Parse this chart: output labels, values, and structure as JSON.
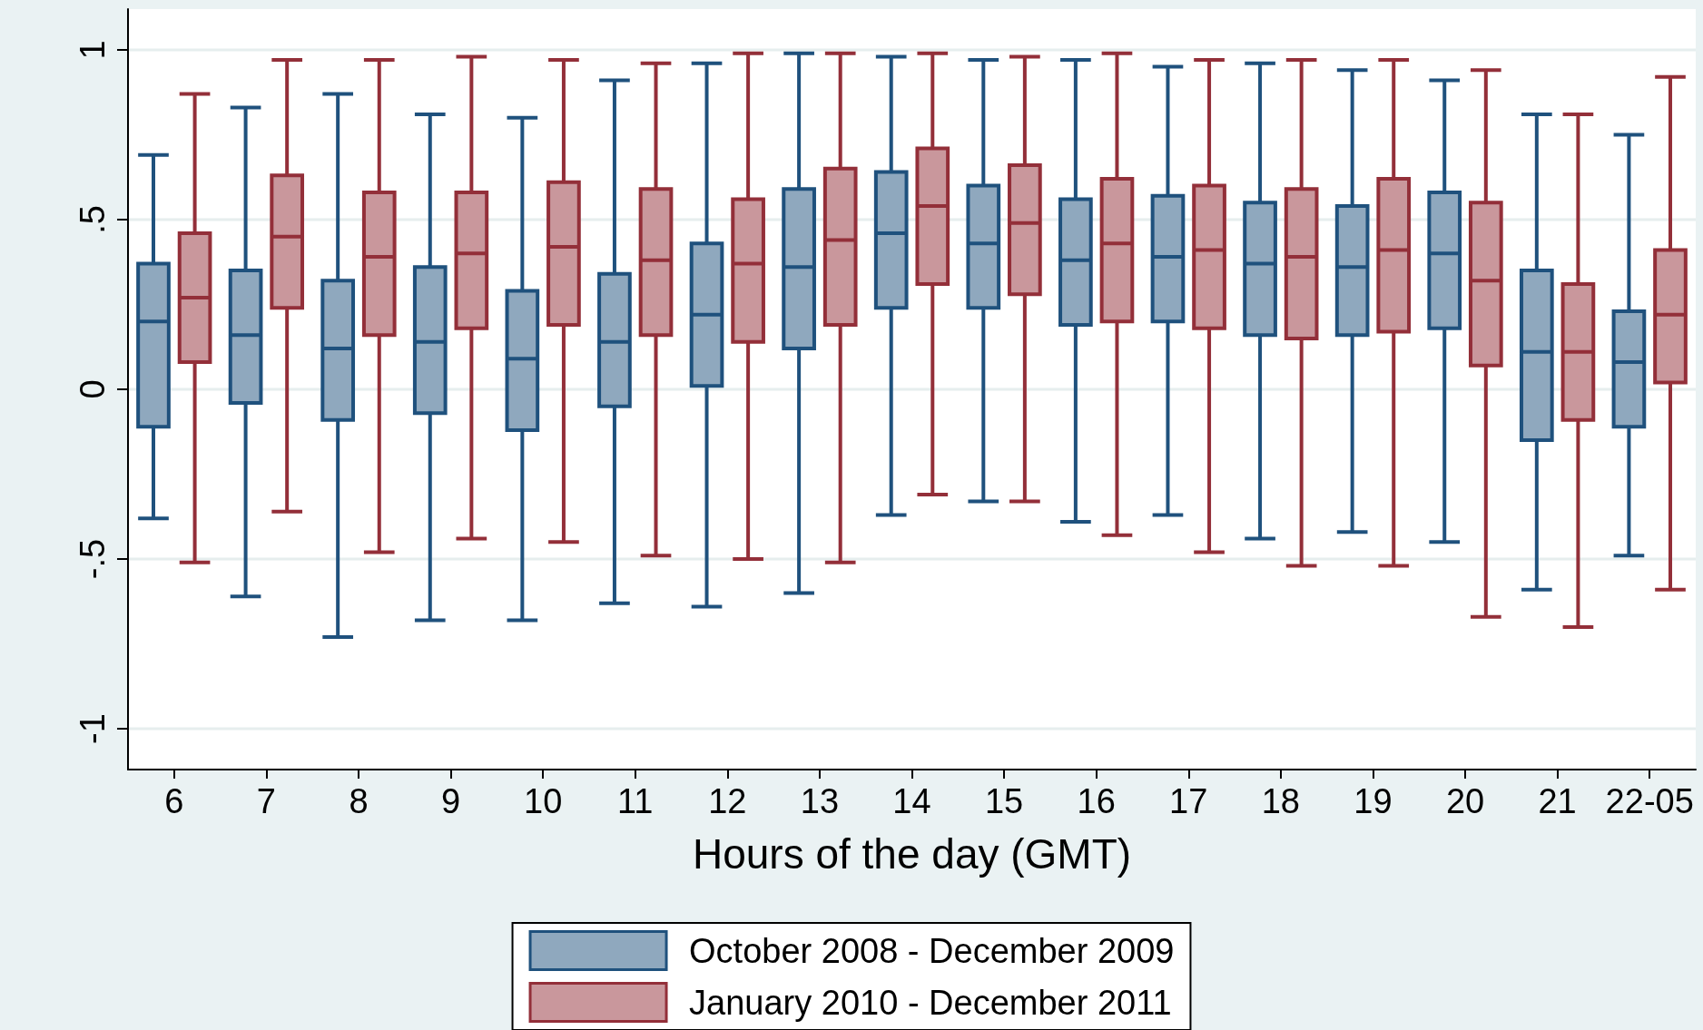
{
  "chart_data": {
    "type": "box",
    "xlabel": "Hours of the day (GMT)",
    "categories": [
      "6",
      "7",
      "8",
      "9",
      "10",
      "11",
      "12",
      "13",
      "14",
      "15",
      "16",
      "17",
      "18",
      "19",
      "20",
      "21",
      "22-05"
    ],
    "ylim": [
      -1.12,
      1.12
    ],
    "yticks": [
      {
        "value": -1,
        "label": "-1"
      },
      {
        "value": -0.5,
        "label": "-.5"
      },
      0,
      {
        "value": 0.5,
        "label": ".5"
      },
      1
    ],
    "grid": "y",
    "legend": "bottom",
    "series": [
      {
        "name": "October 2008 - December 2009",
        "color": "#8fa8be",
        "boxes": [
          {
            "low": -0.38,
            "q1": -0.11,
            "median": 0.2,
            "q3": 0.37,
            "high": 0.69
          },
          {
            "low": -0.61,
            "q1": -0.04,
            "median": 0.16,
            "q3": 0.35,
            "high": 0.83
          },
          {
            "low": -0.73,
            "q1": -0.09,
            "median": 0.12,
            "q3": 0.32,
            "high": 0.87
          },
          {
            "low": -0.68,
            "q1": -0.07,
            "median": 0.14,
            "q3": 0.36,
            "high": 0.81
          },
          {
            "low": -0.68,
            "q1": -0.12,
            "median": 0.09,
            "q3": 0.29,
            "high": 0.8
          },
          {
            "low": -0.63,
            "q1": -0.05,
            "median": 0.14,
            "q3": 0.34,
            "high": 0.91
          },
          {
            "low": -0.64,
            "q1": 0.01,
            "median": 0.22,
            "q3": 0.43,
            "high": 0.96
          },
          {
            "low": -0.6,
            "q1": 0.12,
            "median": 0.36,
            "q3": 0.59,
            "high": 0.99
          },
          {
            "low": -0.37,
            "q1": 0.24,
            "median": 0.46,
            "q3": 0.64,
            "high": 0.98
          },
          {
            "low": -0.33,
            "q1": 0.24,
            "median": 0.43,
            "q3": 0.6,
            "high": 0.97
          },
          {
            "low": -0.39,
            "q1": 0.19,
            "median": 0.38,
            "q3": 0.56,
            "high": 0.97
          },
          {
            "low": -0.37,
            "q1": 0.2,
            "median": 0.39,
            "q3": 0.57,
            "high": 0.95
          },
          {
            "low": -0.44,
            "q1": 0.16,
            "median": 0.37,
            "q3": 0.55,
            "high": 0.96
          },
          {
            "low": -0.42,
            "q1": 0.16,
            "median": 0.36,
            "q3": 0.54,
            "high": 0.94
          },
          {
            "low": -0.45,
            "q1": 0.18,
            "median": 0.4,
            "q3": 0.58,
            "high": 0.91
          },
          {
            "low": -0.59,
            "q1": -0.15,
            "median": 0.11,
            "q3": 0.35,
            "high": 0.81
          },
          {
            "low": -0.49,
            "q1": -0.11,
            "median": 0.08,
            "q3": 0.23,
            "high": 0.75
          }
        ]
      },
      {
        "name": "January 2010 - December 2011",
        "color": "#c9979c",
        "boxes": [
          {
            "low": -0.51,
            "q1": 0.08,
            "median": 0.27,
            "q3": 0.46,
            "high": 0.87
          },
          {
            "low": -0.36,
            "q1": 0.24,
            "median": 0.45,
            "q3": 0.63,
            "high": 0.97
          },
          {
            "low": -0.48,
            "q1": 0.16,
            "median": 0.39,
            "q3": 0.58,
            "high": 0.97
          },
          {
            "low": -0.44,
            "q1": 0.18,
            "median": 0.4,
            "q3": 0.58,
            "high": 0.98
          },
          {
            "low": -0.45,
            "q1": 0.19,
            "median": 0.42,
            "q3": 0.61,
            "high": 0.97
          },
          {
            "low": -0.49,
            "q1": 0.16,
            "median": 0.38,
            "q3": 0.59,
            "high": 0.96
          },
          {
            "low": -0.5,
            "q1": 0.14,
            "median": 0.37,
            "q3": 0.56,
            "high": 0.99
          },
          {
            "low": -0.51,
            "q1": 0.19,
            "median": 0.44,
            "q3": 0.65,
            "high": 0.99
          },
          {
            "low": -0.31,
            "q1": 0.31,
            "median": 0.54,
            "q3": 0.71,
            "high": 0.99
          },
          {
            "low": -0.33,
            "q1": 0.28,
            "median": 0.49,
            "q3": 0.66,
            "high": 0.98
          },
          {
            "low": -0.43,
            "q1": 0.2,
            "median": 0.43,
            "q3": 0.62,
            "high": 0.99
          },
          {
            "low": -0.48,
            "q1": 0.18,
            "median": 0.41,
            "q3": 0.6,
            "high": 0.97
          },
          {
            "low": -0.52,
            "q1": 0.15,
            "median": 0.39,
            "q3": 0.59,
            "high": 0.97
          },
          {
            "low": -0.52,
            "q1": 0.17,
            "median": 0.41,
            "q3": 0.62,
            "high": 0.97
          },
          {
            "low": -0.67,
            "q1": 0.07,
            "median": 0.32,
            "q3": 0.55,
            "high": 0.94
          },
          {
            "low": -0.7,
            "q1": -0.09,
            "median": 0.11,
            "q3": 0.31,
            "high": 0.81
          },
          {
            "low": -0.59,
            "q1": 0.02,
            "median": 0.22,
            "q3": 0.41,
            "high": 0.92
          }
        ]
      }
    ]
  }
}
